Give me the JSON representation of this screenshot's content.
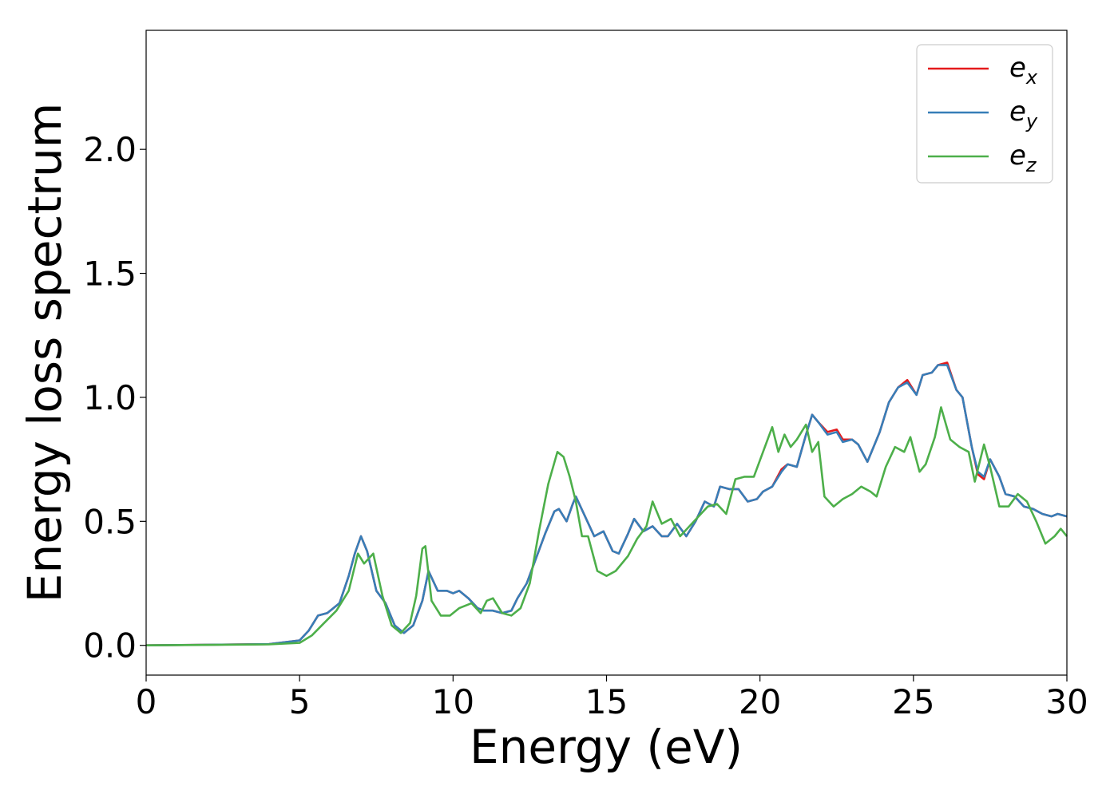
{
  "chart_data": {
    "type": "line",
    "title": "",
    "xlabel": "Energy (eV)",
    "ylabel": "Energy loss spectrum",
    "xlim": [
      0,
      30
    ],
    "ylim": [
      -0.12,
      2.48
    ],
    "xticks": [
      0,
      5,
      10,
      15,
      20,
      25,
      30
    ],
    "xtick_labels": [
      "0",
      "5",
      "10",
      "15",
      "20",
      "25",
      "30"
    ],
    "yticks": [
      0.0,
      0.5,
      1.0,
      1.5,
      2.0
    ],
    "ytick_labels": [
      "0.0",
      "0.5",
      "1.0",
      "1.5",
      "2.0"
    ],
    "grid": false,
    "legend_position": "top-right",
    "series": [
      {
        "name": "e_x",
        "legend_base": "e",
        "legend_sub": "x",
        "color": "#e41a1c",
        "x": [
          0,
          4,
          5,
          5.3,
          5.6,
          5.9,
          6.3,
          6.6,
          6.8,
          7.0,
          7.2,
          7.5,
          7.8,
          8.1,
          8.4,
          8.7,
          9.0,
          9.2,
          9.5,
          9.8,
          10.0,
          10.2,
          10.5,
          10.8,
          11.0,
          11.3,
          11.6,
          11.9,
          12.1,
          12.4,
          12.7,
          13.0,
          13.3,
          13.45,
          13.7,
          13.9,
          14.0,
          14.3,
          14.6,
          14.9,
          15.2,
          15.4,
          15.7,
          15.9,
          16.2,
          16.5,
          16.8,
          17.0,
          17.3,
          17.6,
          17.9,
          18.2,
          18.5,
          18.7,
          19.0,
          19.3,
          19.6,
          19.9,
          20.1,
          20.4,
          20.7,
          20.9,
          21.2,
          21.5,
          21.7,
          21.9,
          22.2,
          22.5,
          22.7,
          23.0,
          23.2,
          23.5,
          23.7,
          23.9,
          24.2,
          24.5,
          24.8,
          25.1,
          25.3,
          25.6,
          25.8,
          26.1,
          26.4,
          26.6,
          26.9,
          27.1,
          27.3,
          27.5,
          27.8,
          28.0,
          28.3,
          28.6,
          28.9,
          29.2,
          29.5,
          29.7,
          30.0
        ],
        "y": [
          0.0,
          0.005,
          0.02,
          0.06,
          0.12,
          0.13,
          0.17,
          0.28,
          0.37,
          0.44,
          0.38,
          0.22,
          0.17,
          0.08,
          0.05,
          0.08,
          0.18,
          0.3,
          0.22,
          0.22,
          0.21,
          0.22,
          0.19,
          0.15,
          0.14,
          0.14,
          0.13,
          0.14,
          0.19,
          0.25,
          0.35,
          0.45,
          0.54,
          0.55,
          0.5,
          0.57,
          0.6,
          0.52,
          0.44,
          0.46,
          0.38,
          0.37,
          0.45,
          0.51,
          0.46,
          0.48,
          0.44,
          0.44,
          0.49,
          0.44,
          0.5,
          0.58,
          0.56,
          0.64,
          0.63,
          0.63,
          0.58,
          0.59,
          0.62,
          0.64,
          0.71,
          0.73,
          0.72,
          0.85,
          0.93,
          0.9,
          0.86,
          0.87,
          0.83,
          0.83,
          0.81,
          0.74,
          0.8,
          0.86,
          0.98,
          1.04,
          1.07,
          1.01,
          1.09,
          1.1,
          1.13,
          1.14,
          1.03,
          1.0,
          0.8,
          0.69,
          0.67,
          0.75,
          0.68,
          0.61,
          0.6,
          0.56,
          0.55,
          0.53,
          0.52,
          0.53,
          0.52
        ]
      },
      {
        "name": "e_y",
        "legend_base": "e",
        "legend_sub": "y",
        "color": "#377eb8",
        "x": [
          0,
          4,
          5,
          5.3,
          5.6,
          5.9,
          6.3,
          6.6,
          6.8,
          7.0,
          7.2,
          7.5,
          7.8,
          8.1,
          8.4,
          8.7,
          9.0,
          9.2,
          9.5,
          9.8,
          10.0,
          10.2,
          10.5,
          10.8,
          11.0,
          11.3,
          11.6,
          11.9,
          12.1,
          12.4,
          12.7,
          13.0,
          13.3,
          13.45,
          13.7,
          13.9,
          14.0,
          14.3,
          14.6,
          14.9,
          15.2,
          15.4,
          15.7,
          15.9,
          16.2,
          16.5,
          16.8,
          17.0,
          17.3,
          17.6,
          17.9,
          18.2,
          18.5,
          18.7,
          19.0,
          19.3,
          19.6,
          19.9,
          20.1,
          20.4,
          20.7,
          20.9,
          21.2,
          21.5,
          21.7,
          21.9,
          22.2,
          22.5,
          22.7,
          23.0,
          23.2,
          23.5,
          23.7,
          23.9,
          24.2,
          24.5,
          24.8,
          25.1,
          25.3,
          25.6,
          25.8,
          26.1,
          26.4,
          26.6,
          26.9,
          27.1,
          27.3,
          27.5,
          27.8,
          28.0,
          28.3,
          28.6,
          28.9,
          29.2,
          29.5,
          29.7,
          30.0
        ],
        "y": [
          0.0,
          0.005,
          0.02,
          0.06,
          0.12,
          0.13,
          0.17,
          0.28,
          0.37,
          0.44,
          0.38,
          0.22,
          0.17,
          0.08,
          0.05,
          0.08,
          0.18,
          0.3,
          0.22,
          0.22,
          0.21,
          0.22,
          0.19,
          0.15,
          0.14,
          0.14,
          0.13,
          0.14,
          0.19,
          0.25,
          0.35,
          0.45,
          0.54,
          0.55,
          0.5,
          0.57,
          0.6,
          0.52,
          0.44,
          0.46,
          0.38,
          0.37,
          0.45,
          0.51,
          0.46,
          0.48,
          0.44,
          0.44,
          0.49,
          0.44,
          0.5,
          0.58,
          0.56,
          0.64,
          0.63,
          0.63,
          0.58,
          0.59,
          0.62,
          0.64,
          0.7,
          0.73,
          0.72,
          0.85,
          0.93,
          0.9,
          0.85,
          0.86,
          0.82,
          0.83,
          0.81,
          0.74,
          0.8,
          0.86,
          0.98,
          1.04,
          1.06,
          1.01,
          1.09,
          1.1,
          1.13,
          1.13,
          1.03,
          1.0,
          0.8,
          0.7,
          0.68,
          0.75,
          0.68,
          0.61,
          0.6,
          0.56,
          0.55,
          0.53,
          0.52,
          0.53,
          0.52
        ]
      },
      {
        "name": "e_z",
        "legend_base": "e",
        "legend_sub": "z",
        "color": "#4daf4a",
        "x": [
          0,
          4,
          5,
          5.4,
          5.8,
          6.2,
          6.6,
          6.9,
          7.1,
          7.4,
          7.7,
          8.0,
          8.3,
          8.6,
          8.8,
          9.0,
          9.1,
          9.3,
          9.6,
          9.9,
          10.2,
          10.6,
          10.9,
          11.1,
          11.3,
          11.6,
          11.9,
          12.2,
          12.5,
          12.8,
          13.1,
          13.4,
          13.6,
          13.8,
          14.0,
          14.2,
          14.4,
          14.7,
          15.0,
          15.3,
          15.7,
          16.0,
          16.3,
          16.5,
          16.8,
          17.1,
          17.4,
          17.7,
          18.0,
          18.3,
          18.6,
          18.9,
          19.2,
          19.5,
          19.8,
          20.1,
          20.4,
          20.6,
          20.8,
          21.0,
          21.2,
          21.5,
          21.7,
          21.9,
          22.1,
          22.4,
          22.7,
          23.0,
          23.3,
          23.6,
          23.8,
          24.1,
          24.4,
          24.7,
          24.9,
          25.2,
          25.4,
          25.7,
          25.9,
          26.2,
          26.5,
          26.8,
          27.0,
          27.3,
          27.5,
          27.8,
          28.1,
          28.4,
          28.7,
          29.0,
          29.3,
          29.6,
          29.8,
          30.0
        ],
        "y": [
          0.0,
          0.004,
          0.01,
          0.04,
          0.09,
          0.14,
          0.22,
          0.37,
          0.33,
          0.37,
          0.2,
          0.08,
          0.05,
          0.09,
          0.2,
          0.39,
          0.4,
          0.18,
          0.12,
          0.12,
          0.15,
          0.17,
          0.13,
          0.18,
          0.19,
          0.13,
          0.12,
          0.15,
          0.25,
          0.46,
          0.65,
          0.78,
          0.76,
          0.68,
          0.58,
          0.44,
          0.44,
          0.3,
          0.28,
          0.3,
          0.36,
          0.43,
          0.48,
          0.58,
          0.49,
          0.51,
          0.44,
          0.48,
          0.52,
          0.56,
          0.57,
          0.53,
          0.67,
          0.68,
          0.68,
          0.78,
          0.88,
          0.78,
          0.85,
          0.8,
          0.83,
          0.89,
          0.78,
          0.82,
          0.6,
          0.56,
          0.59,
          0.61,
          0.64,
          0.62,
          0.6,
          0.72,
          0.8,
          0.78,
          0.84,
          0.7,
          0.73,
          0.84,
          0.96,
          0.83,
          0.8,
          0.78,
          0.66,
          0.81,
          0.72,
          0.56,
          0.56,
          0.61,
          0.58,
          0.5,
          0.41,
          0.44,
          0.47,
          0.44
        ]
      }
    ]
  }
}
